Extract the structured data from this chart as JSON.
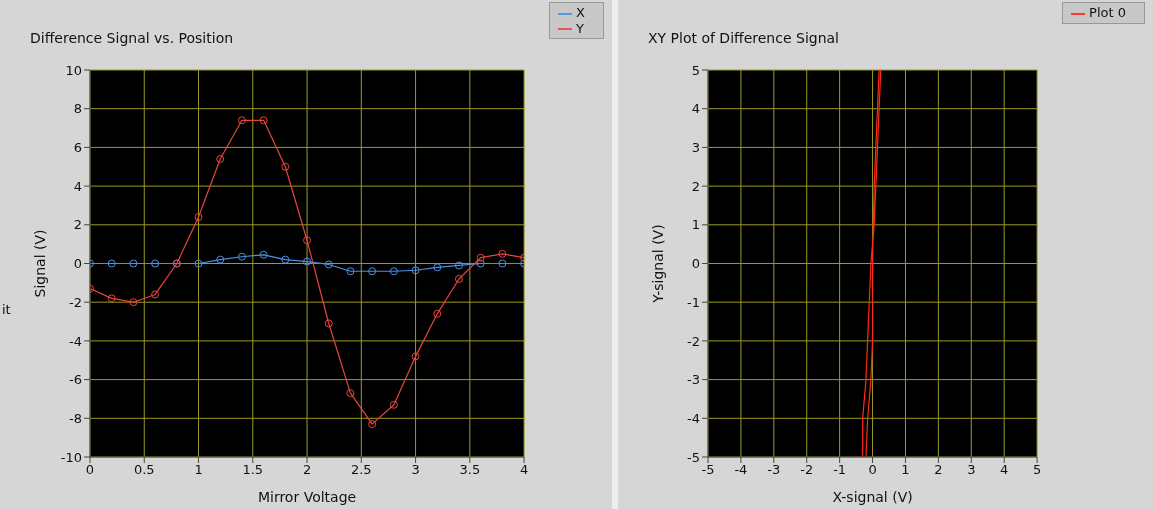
{
  "chart_data": [
    {
      "type": "line",
      "title": "Difference Signal vs. Position",
      "xlabel": "Mirror Voltage",
      "ylabel": "Signal (V)",
      "x": [
        0,
        0.2,
        0.4,
        0.6,
        0.8,
        1.0,
        1.2,
        1.4,
        1.6,
        1.8,
        2.0,
        2.2,
        2.4,
        2.6,
        2.8,
        3.0,
        3.2,
        3.4,
        3.6,
        3.8,
        4.0
      ],
      "series": [
        {
          "name": "X",
          "color": "#4a90e2",
          "values": [
            0,
            0,
            0,
            0,
            0,
            0,
            0.2,
            0.35,
            0.45,
            0.2,
            0.1,
            -0.05,
            -0.4,
            -0.4,
            -0.4,
            -0.35,
            -0.2,
            -0.1,
            0,
            0,
            0
          ]
        },
        {
          "name": "Y",
          "color": "#e8453c",
          "values": [
            -1.3,
            -1.8,
            -2.0,
            -1.6,
            0,
            2.4,
            5.4,
            7.4,
            7.4,
            5.0,
            1.2,
            -3.1,
            -6.7,
            -8.3,
            -7.3,
            -4.8,
            -2.6,
            -0.8,
            0.3,
            0.5,
            0.3
          ]
        }
      ],
      "xlim": [
        0,
        4
      ],
      "xticks": [
        0,
        0.5,
        1,
        1.5,
        2,
        2.5,
        3,
        3.5,
        4
      ],
      "ylim": [
        -10,
        10
      ],
      "yticks": [
        -10,
        -8,
        -6,
        -4,
        -2,
        0,
        2,
        4,
        6,
        8,
        10
      ],
      "grid": true,
      "marker": "circle",
      "legend": "top right",
      "annotations": [
        "it"
      ]
    },
    {
      "type": "line",
      "title": "XY Plot of Difference Signal",
      "xlabel": "X-signal (V)",
      "ylabel": "Y-signal (V)",
      "series": [
        {
          "name": "Plot 0",
          "color": "#ff2a1a",
          "x": [
            -0.3,
            -0.3,
            -0.2,
            -0.15,
            -0.1,
            -0.05,
            0,
            0.05,
            0.1,
            0.15,
            0.2,
            0.25,
            0.2,
            0.15,
            0.1,
            0.05,
            0.02,
            0,
            0,
            0,
            -0.05,
            -0.15,
            -0.2
          ],
          "values": [
            -5,
            -4,
            -3,
            -2,
            -1,
            0,
            0.5,
            1,
            2,
            3,
            4,
            5,
            5,
            4,
            3,
            2,
            1,
            0,
            -1,
            -2,
            -3,
            -4,
            -5
          ]
        }
      ],
      "xlim": [
        -5,
        5
      ],
      "xticks": [
        -5,
        -4,
        -3,
        -2,
        -1,
        0,
        1,
        2,
        3,
        4,
        5
      ],
      "ylim": [
        -5,
        5
      ],
      "yticks": [
        -5,
        -4,
        -3,
        -2,
        -1,
        0,
        1,
        2,
        3,
        4,
        5
      ],
      "grid": true,
      "legend": "top right"
    }
  ]
}
